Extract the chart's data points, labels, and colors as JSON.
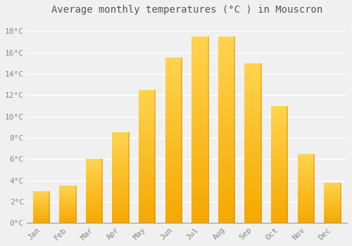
{
  "months": [
    "Jan",
    "Feb",
    "Mar",
    "Apr",
    "May",
    "Jun",
    "Jul",
    "Aug",
    "Sep",
    "Oct",
    "Nov",
    "Dec"
  ],
  "temperatures": [
    3.0,
    3.5,
    6.0,
    8.5,
    12.5,
    15.5,
    17.5,
    17.5,
    15.0,
    11.0,
    6.5,
    3.8
  ],
  "bar_color_bottom": "#F5A800",
  "bar_color_top": "#FFD34E",
  "title": "Average monthly temperatures (°C ) in Mouscron",
  "ylim": [
    0,
    19
  ],
  "yticks": [
    0,
    2,
    4,
    6,
    8,
    10,
    12,
    14,
    16,
    18
  ],
  "ytick_labels": [
    "0°C",
    "2°C",
    "4°C",
    "6°C",
    "8°C",
    "10°C",
    "12°C",
    "14°C",
    "16°C",
    "18°C"
  ],
  "background_color": "#f0f0f0",
  "grid_color": "#ffffff",
  "title_fontsize": 10,
  "tick_fontsize": 8,
  "bar_width": 0.65
}
